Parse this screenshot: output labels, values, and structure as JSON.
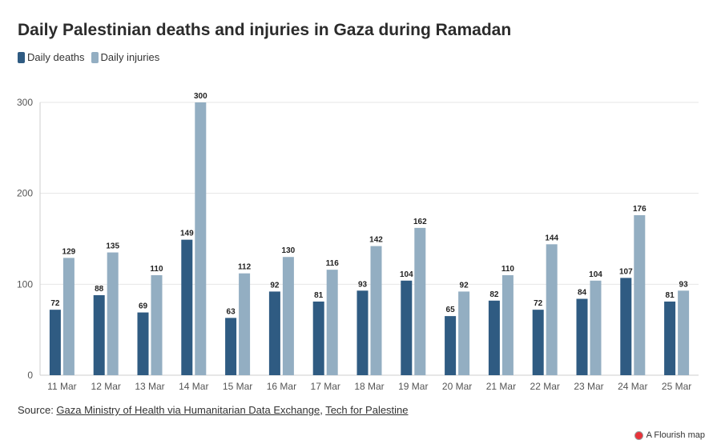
{
  "title": "Daily Palestinian deaths and injuries in Gaza during Ramadan",
  "legend": [
    {
      "label": "Daily deaths",
      "color": "#2f5b82"
    },
    {
      "label": "Daily injuries",
      "color": "#93aec2"
    }
  ],
  "source": {
    "prefix": "Source: ",
    "link1": "Gaza Ministry of Health via Humanitarian Data Exchange",
    "sep": ", ",
    "link2": "Tech for Palestine"
  },
  "credit": "A Flourish map",
  "chart_data": {
    "type": "bar",
    "categories": [
      "11 Mar",
      "12 Mar",
      "13 Mar",
      "14 Mar",
      "15 Mar",
      "16 Mar",
      "17 Mar",
      "18 Mar",
      "19 Mar",
      "20 Mar",
      "21 Mar",
      "22 Mar",
      "23 Mar",
      "24 Mar",
      "25 Mar"
    ],
    "series": [
      {
        "name": "Daily deaths",
        "color": "#2f5b82",
        "values": [
          72,
          88,
          69,
          149,
          63,
          92,
          81,
          93,
          104,
          65,
          82,
          72,
          84,
          107,
          81
        ]
      },
      {
        "name": "Daily injuries",
        "color": "#93aec2",
        "values": [
          129,
          135,
          110,
          300,
          112,
          130,
          116,
          142,
          162,
          92,
          110,
          144,
          104,
          176,
          93
        ]
      }
    ],
    "ylim": [
      0,
      300
    ],
    "yticks": [
      0,
      100,
      200,
      300
    ],
    "grid": true,
    "legend_position": "top-left",
    "data_labels": true
  }
}
